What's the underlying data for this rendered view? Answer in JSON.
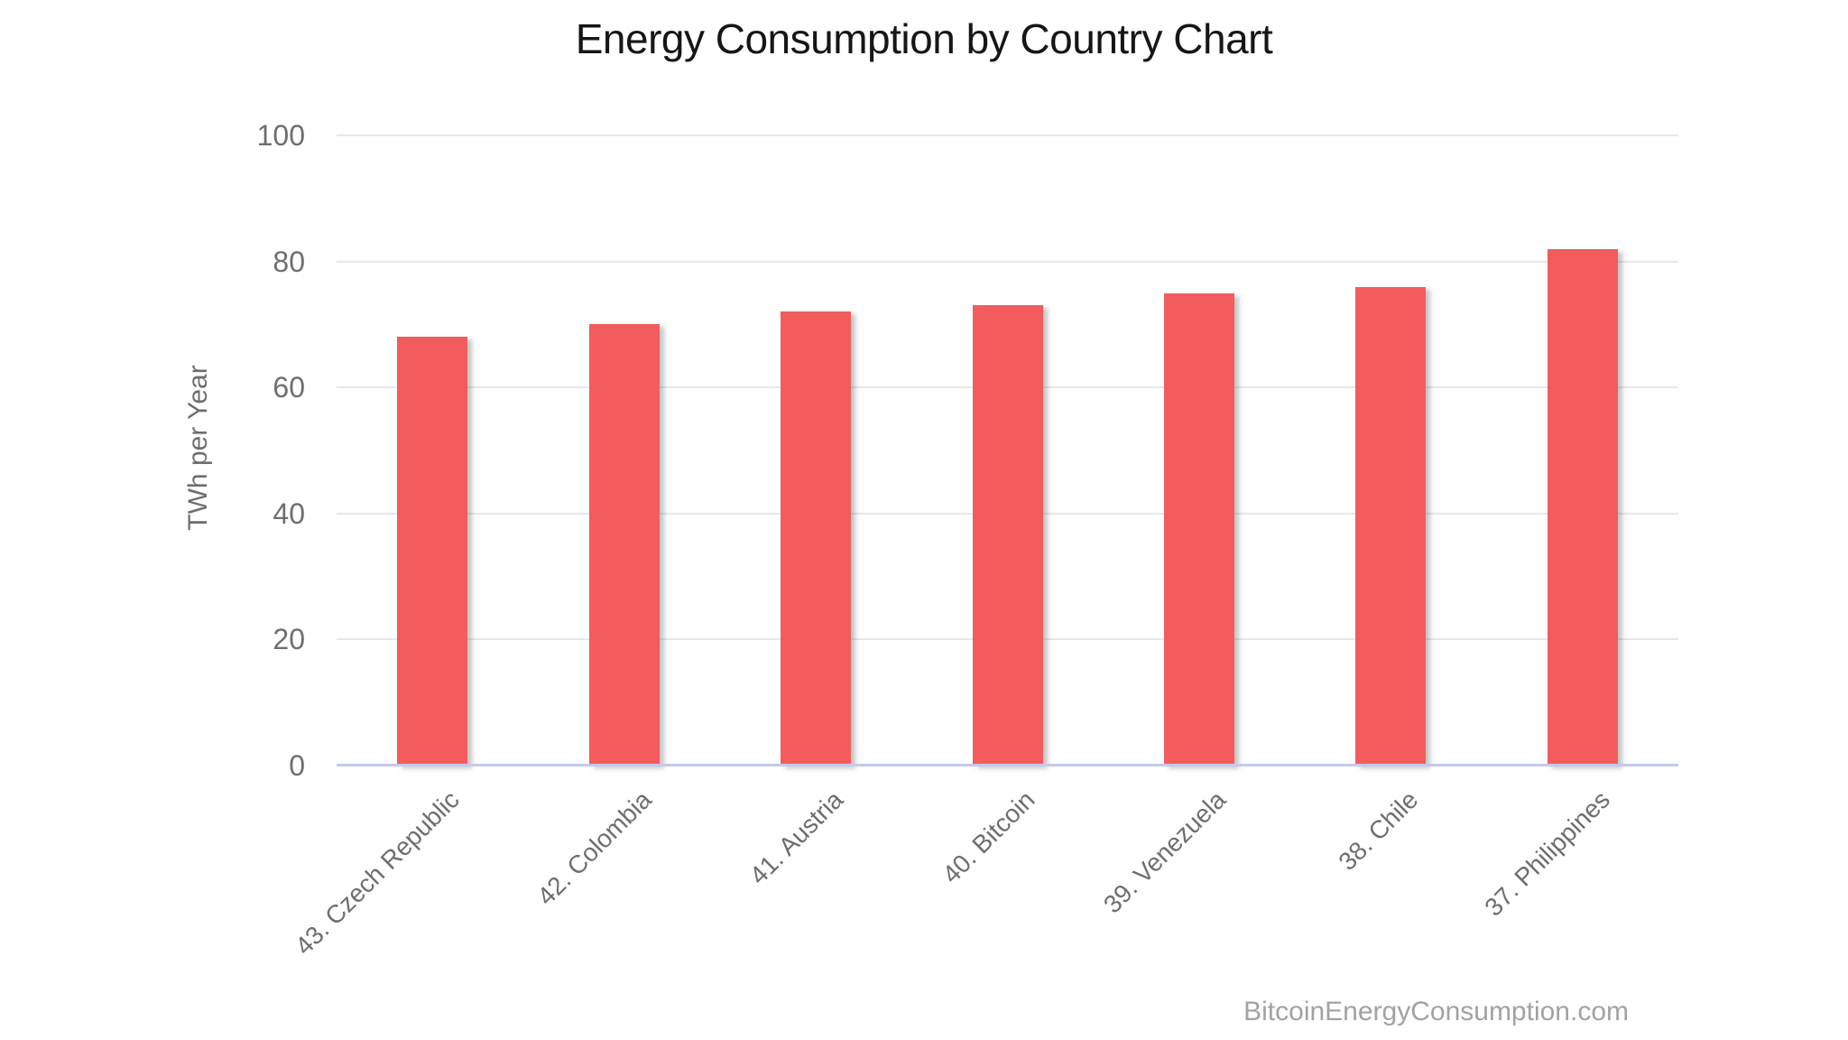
{
  "page": {
    "title": "Energy Consumption by Country Chart",
    "credit": "BitcoinEnergyConsumption.com"
  },
  "chart_data": {
    "type": "bar",
    "title": "Energy Consumption by Country Chart",
    "categories": [
      "43. Czech Republic",
      "42. Colombia",
      "41. Austria",
      "40. Bitcoin",
      "39. Venezuela",
      "38. Chile",
      "37. Philippines"
    ],
    "values": [
      68,
      70,
      72,
      73,
      75,
      76,
      82
    ],
    "xlabel": "",
    "ylabel": "TWh per Year",
    "ylim": [
      0,
      100
    ],
    "yticks": [
      0,
      20,
      40,
      60,
      80,
      100
    ],
    "grid": true,
    "legend": false,
    "x_label_rotation_deg": -45,
    "colors": {
      "bar": "#f25c5c",
      "gridline": "#e7e7e7",
      "baseline": "#c6c8ee",
      "axis_text": "#6e6e6e",
      "title_text": "#161616",
      "credit_text": "#a2a2a2"
    },
    "credit": "BitcoinEnergyConsumption.com"
  }
}
